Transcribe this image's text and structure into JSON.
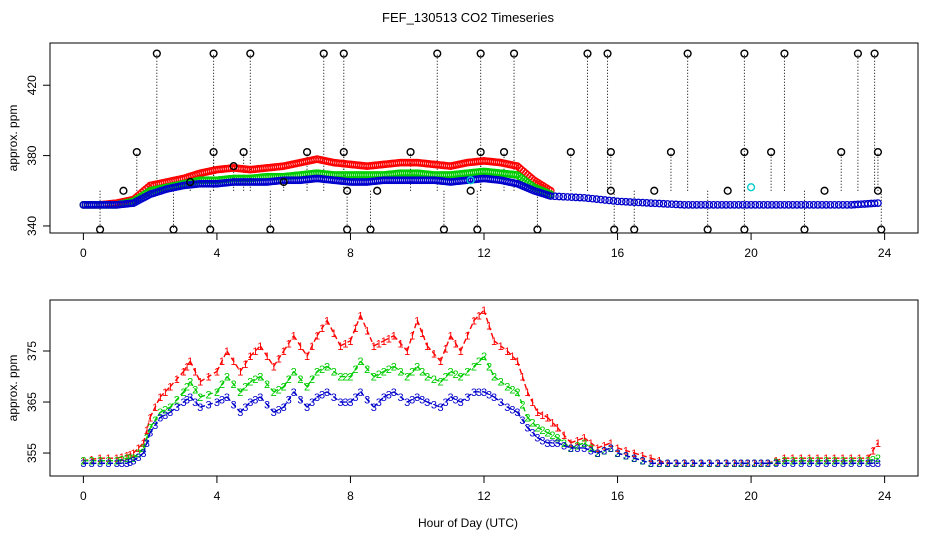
{
  "title": "FEF_130513  CO2 Timeseries",
  "xlabel": "Hour of Day (UTC)",
  "colors": {
    "series1": "#ff0000",
    "series2": "#00cc00",
    "series3": "#0000cc",
    "flagged": "#000000",
    "highlight": "#00cccc",
    "axis": "#000000"
  },
  "chart_data": [
    {
      "type": "scatter",
      "panel": "top",
      "ylabel": "approx. ppm",
      "xlim": [
        -1,
        25
      ],
      "ylim": [
        336,
        444
      ],
      "xticks": [
        0,
        4,
        8,
        12,
        16,
        20,
        24
      ],
      "yticks": [
        340,
        380,
        420
      ],
      "series": [
        {
          "name": "1",
          "color": "#ff0000",
          "x": [
            0,
            0.5,
            1,
            1.5,
            2,
            2.5,
            3,
            3.5,
            4,
            4.5,
            5,
            5.5,
            6,
            6.5,
            7,
            7.5,
            8,
            8.5,
            9,
            9.5,
            10,
            10.5,
            11,
            11.5,
            12,
            12.5,
            13,
            13.5,
            14
          ],
          "y": [
            352,
            352,
            353,
            355,
            363,
            365,
            367,
            370,
            372,
            373,
            372,
            373,
            374,
            376,
            378,
            376,
            375,
            374,
            375,
            376,
            376,
            375,
            374,
            376,
            377,
            376,
            374,
            366,
            360
          ]
        },
        {
          "name": "2",
          "color": "#00cc00",
          "x": [
            0,
            0.5,
            1,
            1.5,
            2,
            2.5,
            3,
            3.5,
            4,
            4.5,
            5,
            5.5,
            6,
            6.5,
            7,
            7.5,
            8,
            8.5,
            9,
            9.5,
            10,
            10.5,
            11,
            11.5,
            12,
            12.5,
            13,
            13.5,
            14
          ],
          "y": [
            352,
            352,
            352,
            354,
            360,
            362,
            364,
            366,
            366,
            367,
            367,
            368,
            368,
            369,
            370,
            369,
            369,
            369,
            369,
            370,
            370,
            369,
            369,
            370,
            371,
            370,
            369,
            362,
            358
          ]
        },
        {
          "name": "3",
          "color": "#0000cc",
          "x": [
            0,
            0.5,
            1,
            1.5,
            2,
            2.5,
            3,
            3.5,
            4,
            4.5,
            5,
            5.5,
            6,
            6.5,
            7,
            7.5,
            8,
            8.5,
            9,
            9.5,
            10,
            10.5,
            11,
            11.5,
            12,
            12.5,
            13,
            13.5,
            14,
            15,
            16,
            17,
            18,
            19,
            20,
            21,
            22,
            23,
            23.8
          ],
          "y": [
            352,
            352,
            352,
            353,
            358,
            361,
            363,
            364,
            364,
            365,
            365,
            365,
            366,
            366,
            367,
            366,
            365,
            365,
            366,
            366,
            366,
            366,
            365,
            366,
            367,
            366,
            364,
            360,
            357,
            356,
            354,
            353,
            352,
            352,
            352,
            352,
            352,
            352,
            353
          ]
        }
      ],
      "flagged_points": [
        {
          "x": 0.5,
          "y": 338
        },
        {
          "x": 1.2,
          "y": 360
        },
        {
          "x": 1.6,
          "y": 382
        },
        {
          "x": 2.2,
          "y": 438
        },
        {
          "x": 2.7,
          "y": 338
        },
        {
          "x": 3.2,
          "y": 365
        },
        {
          "x": 3.8,
          "y": 338
        },
        {
          "x": 3.9,
          "y": 382
        },
        {
          "x": 3.9,
          "y": 438
        },
        {
          "x": 4.5,
          "y": 374
        },
        {
          "x": 4.8,
          "y": 382
        },
        {
          "x": 5.0,
          "y": 438
        },
        {
          "x": 5.6,
          "y": 338
        },
        {
          "x": 6.0,
          "y": 365
        },
        {
          "x": 6.7,
          "y": 382
        },
        {
          "x": 7.2,
          "y": 438
        },
        {
          "x": 7.8,
          "y": 438
        },
        {
          "x": 7.8,
          "y": 382
        },
        {
          "x": 7.9,
          "y": 360
        },
        {
          "x": 7.9,
          "y": 338
        },
        {
          "x": 8.6,
          "y": 338
        },
        {
          "x": 8.8,
          "y": 360
        },
        {
          "x": 9.8,
          "y": 382
        },
        {
          "x": 10.6,
          "y": 438
        },
        {
          "x": 10.8,
          "y": 338
        },
        {
          "x": 11.6,
          "y": 360
        },
        {
          "x": 11.8,
          "y": 338
        },
        {
          "x": 11.9,
          "y": 382
        },
        {
          "x": 11.9,
          "y": 438
        },
        {
          "x": 12.6,
          "y": 382
        },
        {
          "x": 12.9,
          "y": 438
        },
        {
          "x": 13.6,
          "y": 338
        },
        {
          "x": 14.6,
          "y": 382
        },
        {
          "x": 15.1,
          "y": 438
        },
        {
          "x": 15.7,
          "y": 438
        },
        {
          "x": 15.8,
          "y": 382
        },
        {
          "x": 15.8,
          "y": 360
        },
        {
          "x": 15.9,
          "y": 338
        },
        {
          "x": 16.5,
          "y": 338
        },
        {
          "x": 17.1,
          "y": 360
        },
        {
          "x": 17.6,
          "y": 382
        },
        {
          "x": 18.1,
          "y": 438
        },
        {
          "x": 18.7,
          "y": 338
        },
        {
          "x": 19.3,
          "y": 360
        },
        {
          "x": 19.8,
          "y": 382
        },
        {
          "x": 19.8,
          "y": 438
        },
        {
          "x": 19.8,
          "y": 338
        },
        {
          "x": 20.6,
          "y": 382
        },
        {
          "x": 21.0,
          "y": 438
        },
        {
          "x": 21.6,
          "y": 338
        },
        {
          "x": 22.2,
          "y": 360
        },
        {
          "x": 22.7,
          "y": 382
        },
        {
          "x": 23.2,
          "y": 438
        },
        {
          "x": 23.7,
          "y": 438
        },
        {
          "x": 23.8,
          "y": 382
        },
        {
          "x": 23.8,
          "y": 360
        },
        {
          "x": 23.9,
          "y": 338
        }
      ],
      "highlight_points": [
        {
          "x": 20.0,
          "y": 362
        },
        {
          "x": 11.6,
          "y": 366
        }
      ]
    },
    {
      "type": "line",
      "panel": "bottom",
      "ylabel": "approx. ppm",
      "xlim": [
        -1,
        25
      ],
      "ylim": [
        350.5,
        385
      ],
      "xticks": [
        0,
        4,
        8,
        12,
        16,
        20,
        24
      ],
      "yticks": [
        355,
        365,
        375
      ],
      "gap_hours": [
        [
          15.8,
          16.0
        ],
        [
          19.9,
          20.1
        ]
      ],
      "series": [
        {
          "name": "1",
          "label": "1",
          "color": "#ff0000",
          "x": [
            0,
            0.5,
            1,
            1.3,
            1.5,
            1.8,
            2,
            2.3,
            2.6,
            3,
            3.2,
            3.5,
            4,
            4.3,
            4.7,
            5,
            5.3,
            5.7,
            6,
            6.3,
            6.7,
            7,
            7.3,
            7.7,
            8,
            8.3,
            8.7,
            9,
            9.3,
            9.7,
            10,
            10.3,
            10.7,
            11,
            11.3,
            11.7,
            12,
            12.3,
            12.7,
            13,
            13.3,
            13.6,
            13.9,
            14.2,
            14.6,
            15,
            15.4,
            15.8,
            16,
            16.5,
            17,
            17.5,
            18,
            18.5,
            19,
            19.5,
            19.9,
            20.1,
            20.5,
            21,
            21.5,
            22,
            22.5,
            23,
            23.5,
            23.8
          ],
          "y": [
            353.5,
            354,
            354,
            354.5,
            355,
            357,
            362,
            366,
            368,
            371,
            373,
            369,
            371,
            375,
            371,
            374,
            376,
            372,
            375,
            378,
            374,
            378,
            381,
            376,
            377,
            382,
            376,
            377,
            378,
            375,
            381,
            376,
            373,
            378,
            375,
            381,
            383,
            377,
            375,
            373,
            367,
            363,
            362,
            360,
            357,
            358,
            356,
            357,
            356,
            355,
            354,
            353,
            353,
            353,
            353,
            353,
            353,
            353,
            353,
            354,
            354,
            354,
            354,
            354,
            354,
            357
          ]
        },
        {
          "name": "2",
          "label": "2",
          "color": "#00cc00",
          "x": [
            0,
            0.5,
            1,
            1.3,
            1.5,
            1.8,
            2,
            2.3,
            2.6,
            3,
            3.2,
            3.5,
            4,
            4.3,
            4.7,
            5,
            5.3,
            5.7,
            6,
            6.3,
            6.7,
            7,
            7.3,
            7.7,
            8,
            8.3,
            8.7,
            9,
            9.3,
            9.7,
            10,
            10.3,
            10.7,
            11,
            11.3,
            11.7,
            12,
            12.3,
            12.7,
            13,
            13.3,
            13.6,
            13.9,
            14.2,
            14.6,
            15,
            15.4,
            15.8,
            16,
            16.5,
            17,
            17.5,
            18,
            18.5,
            19,
            19.5,
            19.9,
            20.1,
            20.5,
            21,
            21.5,
            22,
            22.5,
            23,
            23.5,
            23.8
          ],
          "y": [
            353.5,
            353.5,
            353.5,
            354,
            354,
            356,
            360,
            363,
            364,
            367,
            369,
            366,
            367,
            370,
            367,
            369,
            370,
            367,
            368,
            371,
            368,
            371,
            372,
            370,
            370,
            373,
            370,
            371,
            372,
            370,
            372,
            370,
            369,
            371,
            370,
            372,
            374,
            370,
            368,
            367,
            362,
            360,
            359,
            358,
            356,
            357,
            355,
            356,
            355,
            354,
            353,
            353,
            353,
            353,
            353,
            353,
            353,
            353,
            353,
            353.5,
            353.5,
            353.5,
            353.5,
            353.5,
            353.5,
            354
          ]
        },
        {
          "name": "3",
          "label": "3",
          "color": "#0000cc",
          "x": [
            0,
            0.5,
            1,
            1.3,
            1.5,
            1.8,
            2,
            2.3,
            2.6,
            3,
            3.2,
            3.5,
            4,
            4.3,
            4.7,
            5,
            5.3,
            5.7,
            6,
            6.3,
            6.7,
            7,
            7.3,
            7.7,
            8,
            8.3,
            8.7,
            9,
            9.3,
            9.7,
            10,
            10.3,
            10.7,
            11,
            11.3,
            11.7,
            12,
            12.3,
            12.7,
            13,
            13.3,
            13.6,
            13.9,
            14.2,
            14.6,
            15,
            15.4,
            15.8,
            16,
            16.5,
            17,
            17.5,
            18,
            18.5,
            19,
            19.5,
            19.9,
            20.1,
            20.5,
            21,
            21.5,
            22,
            22.5,
            23,
            23.5,
            23.8
          ],
          "y": [
            353,
            353,
            353,
            353,
            353.5,
            355,
            359,
            362,
            363,
            365,
            366,
            364,
            365,
            366,
            363,
            365,
            366,
            363,
            364,
            367,
            364,
            366,
            367,
            365,
            365,
            367,
            364,
            366,
            367,
            365,
            366,
            365,
            364,
            366,
            365,
            367,
            367,
            366,
            364,
            363,
            360,
            358,
            357,
            357,
            356,
            356,
            355,
            356,
            355,
            354,
            353,
            353,
            353,
            353,
            353,
            353,
            353,
            353,
            353,
            353,
            353,
            353,
            353,
            353,
            353,
            353
          ]
        }
      ]
    }
  ]
}
